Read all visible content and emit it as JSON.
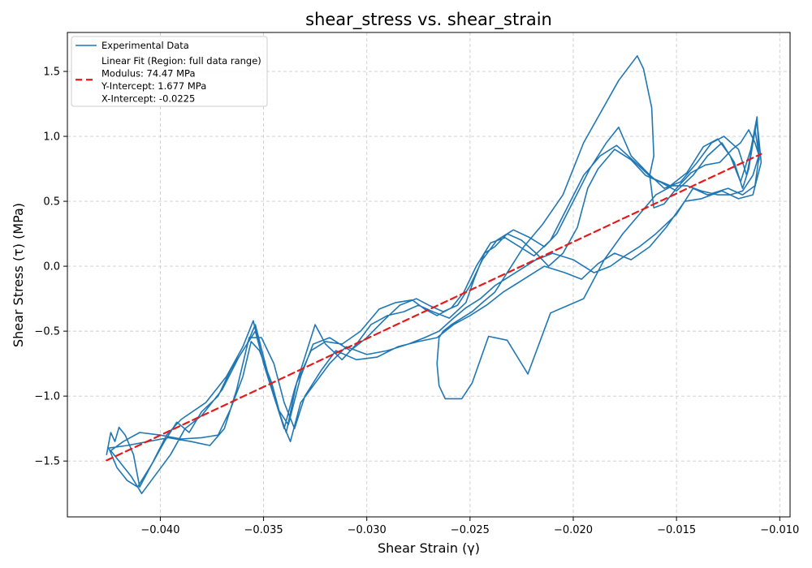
{
  "chart_data": {
    "type": "line",
    "title": "shear_stress vs. shear_strain",
    "xlabel": "Shear Strain (γ)",
    "ylabel": "Shear Stress (τ) (MPa)",
    "xlim": [
      -0.0445,
      -0.0095
    ],
    "ylim": [
      -1.93,
      1.8
    ],
    "xticks": [
      -0.04,
      -0.035,
      -0.03,
      -0.025,
      -0.02,
      -0.015,
      -0.01
    ],
    "xtick_labels": [
      "−0.040",
      "−0.035",
      "−0.030",
      "−0.025",
      "−0.020",
      "−0.015",
      "−0.010"
    ],
    "yticks": [
      -1.5,
      -1.0,
      -0.5,
      0.0,
      0.5,
      1.0,
      1.5
    ],
    "ytick_labels": [
      "−1.5",
      "−1.0",
      "−0.5",
      "0.0",
      "0.5",
      "1.0",
      "1.5"
    ],
    "grid": true,
    "legend_position": "top-left",
    "series": [
      {
        "name": "Experimental Data",
        "style": "solid",
        "color": "#1f77b4",
        "points": [
          [
            -0.0426,
            -1.45
          ],
          [
            -0.0424,
            -1.28
          ],
          [
            -0.0422,
            -1.35
          ],
          [
            -0.042,
            -1.24
          ],
          [
            -0.0417,
            -1.3
          ],
          [
            -0.0413,
            -1.45
          ],
          [
            -0.041,
            -1.7
          ],
          [
            -0.0405,
            -1.55
          ],
          [
            -0.0398,
            -1.35
          ],
          [
            -0.0392,
            -1.2
          ],
          [
            -0.0386,
            -1.28
          ],
          [
            -0.038,
            -1.12
          ],
          [
            -0.0372,
            -1.0
          ],
          [
            -0.0366,
            -0.8
          ],
          [
            -0.0358,
            -0.6
          ],
          [
            -0.0354,
            -0.45
          ],
          [
            -0.035,
            -0.7
          ],
          [
            -0.0345,
            -1.0
          ],
          [
            -0.034,
            -1.25
          ],
          [
            -0.0335,
            -0.95
          ],
          [
            -0.033,
            -0.7
          ],
          [
            -0.0325,
            -0.45
          ],
          [
            -0.032,
            -0.6
          ],
          [
            -0.0312,
            -0.72
          ],
          [
            -0.0305,
            -0.6
          ],
          [
            -0.0298,
            -0.45
          ],
          [
            -0.029,
            -0.38
          ],
          [
            -0.0282,
            -0.35
          ],
          [
            -0.0275,
            -0.3
          ],
          [
            -0.0268,
            -0.35
          ],
          [
            -0.026,
            -0.4
          ],
          [
            -0.0252,
            -0.28
          ],
          [
            -0.0248,
            -0.1
          ],
          [
            -0.0243,
            0.1
          ],
          [
            -0.0238,
            0.15
          ],
          [
            -0.0232,
            0.25
          ],
          [
            -0.0225,
            0.2
          ],
          [
            -0.0218,
            0.1
          ],
          [
            -0.0212,
            0.0
          ],
          [
            -0.0205,
            0.1
          ],
          [
            -0.0198,
            0.3
          ],
          [
            -0.0193,
            0.6
          ],
          [
            -0.0188,
            0.75
          ],
          [
            -0.018,
            0.9
          ],
          [
            -0.0172,
            0.82
          ],
          [
            -0.0165,
            0.7
          ],
          [
            -0.0158,
            0.65
          ],
          [
            -0.015,
            0.58
          ],
          [
            -0.0142,
            0.7
          ],
          [
            -0.0135,
            0.85
          ],
          [
            -0.0128,
            0.95
          ],
          [
            -0.0122,
            0.8
          ],
          [
            -0.0118,
            0.6
          ],
          [
            -0.0115,
            0.75
          ],
          [
            -0.0112,
            1.05
          ],
          [
            -0.011,
            0.85
          ],
          [
            -0.0112,
            0.62
          ],
          [
            -0.0118,
            0.55
          ],
          [
            -0.0125,
            0.6
          ],
          [
            -0.0135,
            0.55
          ],
          [
            -0.0142,
            0.6
          ],
          [
            -0.015,
            0.4
          ],
          [
            -0.016,
            0.25
          ],
          [
            -0.0168,
            0.15
          ],
          [
            -0.0175,
            0.08
          ],
          [
            -0.0182,
            0.0
          ],
          [
            -0.019,
            -0.05
          ],
          [
            -0.02,
            0.05
          ],
          [
            -0.021,
            0.1
          ],
          [
            -0.0218,
            0.05
          ],
          [
            -0.0228,
            -0.05
          ],
          [
            -0.0238,
            -0.15
          ],
          [
            -0.0245,
            -0.25
          ],
          [
            -0.0252,
            -0.32
          ],
          [
            -0.0258,
            -0.4
          ],
          [
            -0.0265,
            -0.5
          ],
          [
            -0.0272,
            -0.55
          ],
          [
            -0.028,
            -0.6
          ],
          [
            -0.029,
            -0.65
          ],
          [
            -0.03,
            -0.68
          ],
          [
            -0.031,
            -0.62
          ],
          [
            -0.0318,
            -0.75
          ],
          [
            -0.0325,
            -0.9
          ],
          [
            -0.0332,
            -1.05
          ],
          [
            -0.0337,
            -1.35
          ],
          [
            -0.0341,
            -1.2
          ],
          [
            -0.0346,
            -0.9
          ],
          [
            -0.0352,
            -0.65
          ],
          [
            -0.0356,
            -0.58
          ],
          [
            -0.036,
            -0.85
          ],
          [
            -0.0366,
            -1.1
          ],
          [
            -0.0372,
            -1.3
          ],
          [
            -0.038,
            -1.32
          ],
          [
            -0.039,
            -1.33
          ],
          [
            -0.04,
            -1.3
          ],
          [
            -0.041,
            -1.28
          ],
          [
            -0.0418,
            -1.35
          ],
          [
            -0.0424,
            -1.42
          ],
          [
            -0.042,
            -1.5
          ],
          [
            -0.0414,
            -1.62
          ],
          [
            -0.0409,
            -1.75
          ],
          [
            -0.0402,
            -1.6
          ],
          [
            -0.0395,
            -1.45
          ],
          [
            -0.0388,
            -1.25
          ],
          [
            -0.038,
            -1.15
          ],
          [
            -0.037,
            -0.95
          ],
          [
            -0.0362,
            -0.7
          ],
          [
            -0.0354,
            -0.5
          ],
          [
            -0.0349,
            -0.8
          ],
          [
            -0.0343,
            -1.1
          ],
          [
            -0.0338,
            -1.22
          ],
          [
            -0.0332,
            -0.85
          ],
          [
            -0.0326,
            -0.6
          ],
          [
            -0.0318,
            -0.55
          ],
          [
            -0.0308,
            -0.65
          ],
          [
            -0.03,
            -0.55
          ],
          [
            -0.0292,
            -0.42
          ],
          [
            -0.0284,
            -0.3
          ],
          [
            -0.0276,
            -0.25
          ],
          [
            -0.027,
            -0.3
          ],
          [
            -0.0263,
            -0.35
          ],
          [
            -0.0256,
            -0.3
          ],
          [
            -0.025,
            -0.15
          ],
          [
            -0.0244,
            0.05
          ],
          [
            -0.0237,
            0.2
          ],
          [
            -0.0229,
            0.28
          ],
          [
            -0.0221,
            0.22
          ],
          [
            -0.0214,
            0.15
          ],
          [
            -0.0208,
            0.25
          ],
          [
            -0.02,
            0.5
          ],
          [
            -0.0192,
            0.75
          ],
          [
            -0.0184,
            0.95
          ],
          [
            -0.0178,
            1.07
          ],
          [
            -0.0172,
            0.85
          ],
          [
            -0.0164,
            0.72
          ],
          [
            -0.0156,
            0.6
          ],
          [
            -0.0148,
            0.65
          ],
          [
            -0.014,
            0.8
          ],
          [
            -0.0133,
            0.95
          ],
          [
            -0.0127,
            1.0
          ],
          [
            -0.012,
            0.9
          ],
          [
            -0.0116,
            0.7
          ],
          [
            -0.0113,
            0.95
          ],
          [
            -0.0111,
            1.12
          ],
          [
            -0.0109,
            0.8
          ],
          [
            -0.0113,
            0.55
          ],
          [
            -0.012,
            0.52
          ],
          [
            -0.0128,
            0.58
          ],
          [
            -0.0138,
            0.52
          ],
          [
            -0.0146,
            0.5
          ],
          [
            -0.0155,
            0.3
          ],
          [
            -0.0163,
            0.15
          ],
          [
            -0.0172,
            0.05
          ],
          [
            -0.018,
            0.1
          ],
          [
            -0.0188,
            0.02
          ],
          [
            -0.0196,
            -0.1
          ],
          [
            -0.0204,
            -0.05
          ],
          [
            -0.0214,
            0.0
          ],
          [
            -0.0224,
            -0.1
          ],
          [
            -0.0234,
            -0.2
          ],
          [
            -0.0242,
            -0.3
          ],
          [
            -0.025,
            -0.38
          ],
          [
            -0.0258,
            -0.45
          ],
          [
            -0.0266,
            -0.55
          ],
          [
            -0.0275,
            -0.58
          ],
          [
            -0.0285,
            -0.62
          ],
          [
            -0.0295,
            -0.7
          ],
          [
            -0.0305,
            -0.72
          ],
          [
            -0.0315,
            -0.65
          ],
          [
            -0.0322,
            -0.8
          ],
          [
            -0.033,
            -1.0
          ],
          [
            -0.0335,
            -1.25
          ],
          [
            -0.034,
            -1.05
          ],
          [
            -0.0345,
            -0.75
          ],
          [
            -0.0351,
            -0.55
          ],
          [
            -0.0357,
            -0.55
          ],
          [
            -0.0363,
            -0.95
          ],
          [
            -0.0369,
            -1.25
          ],
          [
            -0.0376,
            -1.38
          ],
          [
            -0.0385,
            -1.35
          ],
          [
            -0.0396,
            -1.32
          ],
          [
            -0.0406,
            -1.35
          ],
          [
            -0.0416,
            -1.38
          ],
          [
            -0.0425,
            -1.4
          ],
          [
            -0.0421,
            -1.55
          ],
          [
            -0.0416,
            -1.65
          ],
          [
            -0.0411,
            -1.7
          ],
          [
            -0.0404,
            -1.52
          ],
          [
            -0.0397,
            -1.3
          ],
          [
            -0.039,
            -1.18
          ],
          [
            -0.0378,
            -1.05
          ],
          [
            -0.0368,
            -0.85
          ],
          [
            -0.036,
            -0.62
          ],
          [
            -0.0355,
            -0.42
          ],
          [
            -0.035,
            -0.75
          ],
          [
            -0.0344,
            -1.05
          ],
          [
            -0.0339,
            -1.28
          ],
          [
            -0.0334,
            -0.9
          ],
          [
            -0.0327,
            -0.65
          ],
          [
            -0.032,
            -0.58
          ],
          [
            -0.0312,
            -0.6
          ],
          [
            -0.0303,
            -0.5
          ],
          [
            -0.0294,
            -0.33
          ],
          [
            -0.0286,
            -0.28
          ],
          [
            -0.0278,
            -0.26
          ],
          [
            -0.0272,
            -0.33
          ],
          [
            -0.0266,
            -0.38
          ],
          [
            -0.0259,
            -0.32
          ],
          [
            -0.0253,
            -0.2
          ],
          [
            -0.0247,
            0.0
          ],
          [
            -0.024,
            0.18
          ],
          [
            -0.0233,
            0.22
          ],
          [
            -0.0226,
            0.15
          ],
          [
            -0.0219,
            0.08
          ],
          [
            -0.0211,
            0.2
          ],
          [
            -0.0203,
            0.45
          ],
          [
            -0.0195,
            0.7
          ],
          [
            -0.0187,
            0.85
          ],
          [
            -0.0179,
            0.93
          ],
          [
            -0.017,
            0.8
          ],
          [
            -0.0162,
            0.68
          ],
          [
            -0.0153,
            0.62
          ],
          [
            -0.0145,
            0.72
          ],
          [
            -0.0137,
            0.92
          ],
          [
            -0.013,
            0.98
          ],
          [
            -0.0124,
            0.85
          ],
          [
            -0.0119,
            0.65
          ],
          [
            -0.0114,
            0.9
          ],
          [
            -0.0111,
            1.15
          ],
          [
            -0.011,
            0.82
          ],
          [
            -0.011,
            0.85
          ],
          [
            -0.0112,
            0.95
          ],
          [
            -0.0115,
            1.05
          ],
          [
            -0.0119,
            0.95
          ],
          [
            -0.0123,
            0.9
          ],
          [
            -0.0129,
            0.8
          ],
          [
            -0.0136,
            0.78
          ],
          [
            -0.0143,
            0.72
          ],
          [
            -0.015,
            0.6
          ],
          [
            -0.0156,
            0.48
          ],
          [
            -0.0161,
            0.45
          ],
          [
            -0.0163,
            0.7
          ],
          [
            -0.0161,
            0.85
          ],
          [
            -0.0162,
            1.22
          ],
          [
            -0.0166,
            1.52
          ],
          [
            -0.0169,
            1.62
          ],
          [
            -0.0178,
            1.43
          ],
          [
            -0.0195,
            0.95
          ],
          [
            -0.0205,
            0.55
          ],
          [
            -0.0215,
            0.32
          ],
          [
            -0.0224,
            0.15
          ],
          [
            -0.0232,
            -0.05
          ],
          [
            -0.0238,
            -0.2
          ],
          [
            -0.0244,
            -0.28
          ],
          [
            -0.0249,
            -0.35
          ],
          [
            -0.0254,
            -0.4
          ],
          [
            -0.0259,
            -0.45
          ],
          [
            -0.0263,
            -0.5
          ],
          [
            -0.0265,
            -0.55
          ],
          [
            -0.0266,
            -0.75
          ],
          [
            -0.0265,
            -0.92
          ],
          [
            -0.0262,
            -1.02
          ],
          [
            -0.0254,
            -1.02
          ],
          [
            -0.0249,
            -0.9
          ],
          [
            -0.0241,
            -0.54
          ],
          [
            -0.0232,
            -0.57
          ],
          [
            -0.0222,
            -0.83
          ],
          [
            -0.0211,
            -0.36
          ],
          [
            -0.0195,
            -0.25
          ],
          [
            -0.0185,
            0.05
          ],
          [
            -0.0176,
            0.25
          ],
          [
            -0.0168,
            0.4
          ],
          [
            -0.016,
            0.55
          ],
          [
            -0.0152,
            0.62
          ],
          [
            -0.0145,
            0.62
          ],
          [
            -0.0138,
            0.58
          ],
          [
            -0.013,
            0.55
          ],
          [
            -0.0124,
            0.55
          ],
          [
            -0.0118,
            0.58
          ],
          [
            -0.0113,
            0.7
          ],
          [
            -0.011,
            0.86
          ]
        ]
      },
      {
        "name": "Linear Fit (Region: full data range)\nModulus: 74.47 MPa\nY-Intercept: 1.677 MPa\nX-Intercept: -0.0225",
        "style": "dashed",
        "color": "#e41a1c",
        "points": [
          [
            -0.0426,
            -1.495
          ],
          [
            -0.0109,
            0.865
          ]
        ]
      }
    ],
    "legend": {
      "entries": [
        {
          "label_lines": [
            "Experimental Data"
          ],
          "style": "solid",
          "color": "#1f77b4"
        },
        {
          "label_lines": [
            "Linear Fit (Region: full data range)",
            "Modulus: 74.47 MPa",
            "Y-Intercept: 1.677 MPa",
            "X-Intercept: -0.0225"
          ],
          "style": "dashed",
          "color": "#e41a1c"
        }
      ]
    }
  }
}
